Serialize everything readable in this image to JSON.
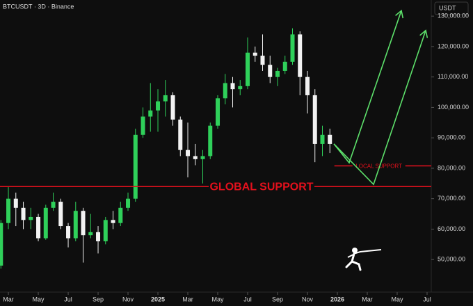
{
  "chart_data": {
    "type": "candlestick",
    "title": "BTCUSDT · 3D · Binance",
    "currency": "USDT",
    "up_color": "#2fd05a",
    "down_color": "#f2f2f2",
    "xlim": [
      1.44,
      30.28
    ],
    "ylim": [
      39300,
      135300
    ],
    "xticks": [
      {
        "value": 2,
        "label": "Mar"
      },
      {
        "value": 4,
        "label": "May"
      },
      {
        "value": 6,
        "label": "Jul"
      },
      {
        "value": 8,
        "label": "Sep"
      },
      {
        "value": 10,
        "label": "Nov"
      },
      {
        "value": 12,
        "label": "2025"
      },
      {
        "value": 14,
        "label": "Mar"
      },
      {
        "value": 16,
        "label": "May"
      },
      {
        "value": 18,
        "label": "Jul"
      },
      {
        "value": 20,
        "label": "Sep"
      },
      {
        "value": 22,
        "label": "Nov"
      },
      {
        "value": 24,
        "label": "2026"
      },
      {
        "value": 26,
        "label": "Mar"
      },
      {
        "value": 28,
        "label": "May"
      },
      {
        "value": 30,
        "label": "Jul"
      }
    ],
    "yticks": [
      {
        "value": 50000,
        "label": "50,000.00"
      },
      {
        "value": 60000,
        "label": "60,000.00"
      },
      {
        "value": 70000,
        "label": "70,000.00"
      },
      {
        "value": 80000,
        "label": "80,000.00"
      },
      {
        "value": 90000,
        "label": "90,000.00"
      },
      {
        "value": 100000,
        "label": "100,000.00"
      },
      {
        "value": 110000,
        "label": "110,000.00"
      },
      {
        "value": 120000,
        "label": "120,000.00"
      },
      {
        "value": 130000,
        "label": "130,000.00"
      }
    ],
    "x": [
      1.5,
      2,
      2.5,
      3,
      3.5,
      4,
      4.5,
      5,
      5.5,
      6,
      6.5,
      7,
      7.5,
      8,
      8.5,
      9,
      9.5,
      10,
      10.5,
      11,
      11.5,
      12,
      12.5,
      13,
      13.5,
      14,
      14.5,
      15,
      15.5,
      16,
      16.5,
      17,
      17.5,
      18,
      18.5,
      19,
      19.5,
      20,
      20.5,
      21,
      21.5,
      22,
      22.5,
      23,
      23.5
    ],
    "open": [
      48000,
      62000,
      70000,
      67000,
      63000,
      64000,
      57000,
      67000,
      69000,
      61000,
      57000,
      66000,
      58000,
      59000,
      56000,
      63000,
      62000,
      67000,
      70000,
      91000,
      97000,
      99000,
      102000,
      104000,
      96000,
      86000,
      84000,
      83000,
      84000,
      94000,
      103000,
      108000,
      106000,
      107000,
      118000,
      117000,
      114000,
      110000,
      112000,
      115000,
      124000,
      110000,
      104000,
      88000,
      91000
    ],
    "high": [
      63000,
      73800,
      72000,
      69000,
      67000,
      65000,
      68000,
      72000,
      70000,
      62000,
      69000,
      67000,
      65000,
      61000,
      64000,
      66000,
      69000,
      72000,
      93000,
      100000,
      108000,
      106000,
      109000,
      105000,
      97000,
      95000,
      88000,
      86000,
      95000,
      104000,
      111000,
      110000,
      109000,
      123000,
      120000,
      124000,
      117000,
      113000,
      117000,
      126000,
      125000,
      112000,
      106000,
      94000,
      93000
    ],
    "low": [
      47000,
      60000,
      61000,
      60000,
      60000,
      56000,
      56500,
      66000,
      60000,
      54000,
      56000,
      49000,
      57000,
      52000,
      55000,
      60000,
      61000,
      66000,
      69000,
      90000,
      92000,
      92000,
      97000,
      94000,
      84000,
      77000,
      81000,
      75000,
      83000,
      93000,
      101000,
      100000,
      104000,
      106000,
      115000,
      112000,
      108000,
      107000,
      111000,
      114000,
      104000,
      98000,
      82000,
      84000,
      85000
    ],
    "close": [
      62000,
      70000,
      67000,
      63000,
      64000,
      57000,
      67000,
      69000,
      61000,
      57000,
      66000,
      58000,
      59000,
      56000,
      63000,
      62000,
      67000,
      70000,
      91000,
      97000,
      99000,
      102000,
      104000,
      96000,
      86000,
      84000,
      83000,
      84000,
      94000,
      103000,
      108000,
      106000,
      107000,
      118000,
      117000,
      114000,
      110000,
      112000,
      115000,
      124000,
      110000,
      104000,
      88000,
      91000,
      88000
    ],
    "support_lines": [
      {
        "text": "GLOBAL SUPPORT",
        "value": 74000,
        "color": "#e3101c"
      },
      {
        "text": "LOCAL SUPPORT",
        "value": 80800,
        "x": 23.8,
        "color": "#e3101c"
      }
    ],
    "projections": [
      {
        "color": "#5de06b",
        "x": [
          23.77,
          24.79,
          28.28
        ],
        "values": [
          88000,
          81800,
          131800
        ]
      },
      {
        "color": "#5de06b",
        "x": [
          23.77,
          26.42,
          29.91
        ],
        "values": [
          88000,
          74700,
          125300
        ]
      }
    ]
  }
}
